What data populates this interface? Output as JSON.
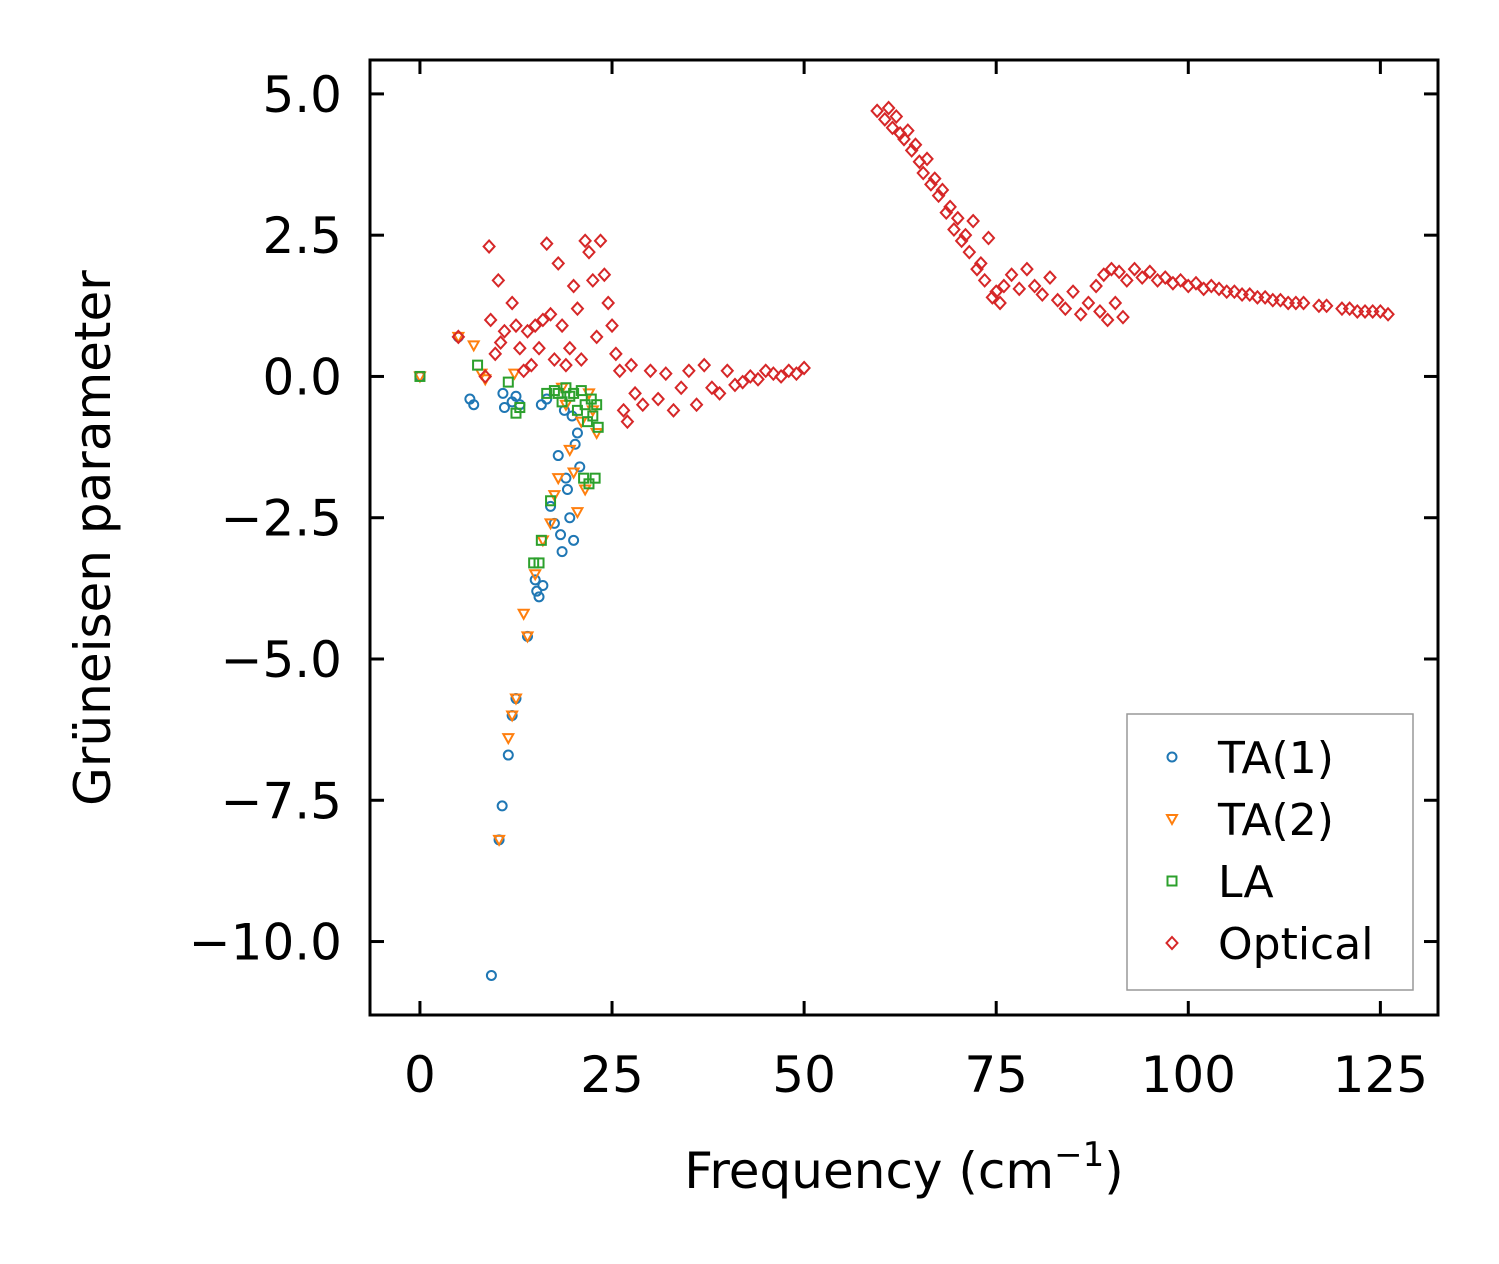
{
  "chart_data": {
    "type": "scatter",
    "xlabel": "Frequency (cm",
    "xlabel_sup": "−1",
    "xlabel_close": ")",
    "ylabel": "Grüneisen parameter",
    "xlim": [
      -6.5,
      132.5
    ],
    "ylim": [
      -11.3,
      5.6
    ],
    "xticks": [
      0,
      25,
      50,
      75,
      100,
      125
    ],
    "xtick_labels": [
      "0",
      "25",
      "50",
      "75",
      "100",
      "125"
    ],
    "yticks": [
      5.0,
      2.5,
      0.0,
      -2.5,
      -5.0,
      -7.5,
      -10.0
    ],
    "ytick_labels": [
      "5.0",
      "2.5",
      "0.0",
      "−2.5",
      "−5.0",
      "−7.5",
      "−10.0"
    ],
    "legend_position": "lower-right",
    "series": [
      {
        "name": "TA(1)",
        "marker": "circle",
        "color": "#1f77b4",
        "points": [
          [
            0,
            0
          ],
          [
            5,
            0.7
          ],
          [
            6.5,
            -0.4
          ],
          [
            7,
            -0.5
          ],
          [
            9.3,
            -10.6
          ],
          [
            10.8,
            -0.3
          ],
          [
            11,
            -0.55
          ],
          [
            12,
            -0.45
          ],
          [
            12.5,
            -0.35
          ],
          [
            13,
            -0.5
          ],
          [
            14,
            -4.6
          ],
          [
            15,
            -3.6
          ],
          [
            15.2,
            -3.8
          ],
          [
            15.5,
            -3.9
          ],
          [
            15.8,
            -0.5
          ],
          [
            16,
            -3.7
          ],
          [
            16.5,
            -0.4
          ],
          [
            17,
            -2.3
          ],
          [
            17.5,
            -2.6
          ],
          [
            18,
            -1.4
          ],
          [
            18.3,
            -2.8
          ],
          [
            18.5,
            -3.1
          ],
          [
            18.8,
            -0.6
          ],
          [
            19,
            -1.8
          ],
          [
            19.2,
            -2.0
          ],
          [
            19.5,
            -2.5
          ],
          [
            19.8,
            -0.7
          ],
          [
            20,
            -2.9
          ],
          [
            20.2,
            -1.2
          ],
          [
            20.5,
            -1.0
          ],
          [
            20.8,
            -1.6
          ],
          [
            10.3,
            -8.2
          ],
          [
            10.7,
            -7.6
          ],
          [
            11.5,
            -6.7
          ],
          [
            12.5,
            -5.7
          ],
          [
            12,
            -6.0
          ]
        ]
      },
      {
        "name": "TA(2)",
        "marker": "triangle-down",
        "color": "#ff7f0e",
        "points": [
          [
            0,
            0
          ],
          [
            5,
            0.7
          ],
          [
            7,
            0.55
          ],
          [
            8,
            0.05
          ],
          [
            8.5,
            -0.05
          ],
          [
            10.3,
            -8.2
          ],
          [
            11.5,
            -6.4
          ],
          [
            12,
            -6.0
          ],
          [
            12.3,
            0.05
          ],
          [
            12.5,
            -5.7
          ],
          [
            13.5,
            -4.2
          ],
          [
            14,
            -4.6
          ],
          [
            15,
            -3.5
          ],
          [
            16,
            -2.9
          ],
          [
            17,
            -2.6
          ],
          [
            17.5,
            -2.1
          ],
          [
            18,
            -1.8
          ],
          [
            18.5,
            -0.2
          ],
          [
            19,
            -0.5
          ],
          [
            19.5,
            -1.3
          ],
          [
            20,
            -1.7
          ],
          [
            20.5,
            -2.4
          ],
          [
            21,
            -0.8
          ],
          [
            21.5,
            -2.0
          ],
          [
            22,
            -0.3
          ],
          [
            22.5,
            -0.6
          ],
          [
            23,
            -1.0
          ]
        ]
      },
      {
        "name": "LA",
        "marker": "square",
        "color": "#2ca02c",
        "points": [
          [
            0,
            0
          ],
          [
            7.5,
            0.2
          ],
          [
            11.5,
            -0.1
          ],
          [
            12.5,
            -0.65
          ],
          [
            13,
            -0.55
          ],
          [
            14.8,
            -3.3
          ],
          [
            15.5,
            -3.3
          ],
          [
            15.8,
            -2.9
          ],
          [
            16.5,
            -0.3
          ],
          [
            17,
            -2.2
          ],
          [
            17.5,
            -0.25
          ],
          [
            18,
            -0.3
          ],
          [
            18.5,
            -0.45
          ],
          [
            19,
            -0.2
          ],
          [
            19.5,
            -0.35
          ],
          [
            20,
            -0.3
          ],
          [
            20.5,
            -0.6
          ],
          [
            21,
            -0.25
          ],
          [
            21.3,
            -1.8
          ],
          [
            21.5,
            -0.5
          ],
          [
            21.8,
            -0.8
          ],
          [
            22,
            -1.9
          ],
          [
            22.3,
            -0.4
          ],
          [
            22.5,
            -0.7
          ],
          [
            22.8,
            -1.8
          ],
          [
            23,
            -0.5
          ],
          [
            23.2,
            -0.9
          ]
        ]
      },
      {
        "name": "Optical",
        "marker": "diamond",
        "color": "#d62728",
        "points": [
          [
            5,
            0.7
          ],
          [
            8.5,
            0
          ],
          [
            9,
            2.3
          ],
          [
            9.2,
            1.0
          ],
          [
            9.8,
            0.4
          ],
          [
            10.2,
            1.7
          ],
          [
            10.5,
            0.6
          ],
          [
            11,
            0.8
          ],
          [
            12,
            1.3
          ],
          [
            12.5,
            0.9
          ],
          [
            13,
            0.5
          ],
          [
            13.5,
            0.1
          ],
          [
            14,
            0.8
          ],
          [
            14.5,
            0.2
          ],
          [
            15,
            0.9
          ],
          [
            15.5,
            0.5
          ],
          [
            16,
            1.0
          ],
          [
            16.5,
            2.35
          ],
          [
            17,
            1.1
          ],
          [
            17.5,
            0.3
          ],
          [
            18,
            2.0
          ],
          [
            18.5,
            0.9
          ],
          [
            19,
            0.2
          ],
          [
            19.5,
            0.5
          ],
          [
            20,
            1.6
          ],
          [
            20.5,
            1.2
          ],
          [
            21,
            0.3
          ],
          [
            21.5,
            2.4
          ],
          [
            22,
            2.2
          ],
          [
            22.5,
            1.7
          ],
          [
            23,
            0.7
          ],
          [
            23.5,
            2.4
          ],
          [
            24,
            1.8
          ],
          [
            24.5,
            1.3
          ],
          [
            25,
            0.9
          ],
          [
            25.5,
            0.4
          ],
          [
            26,
            0.1
          ],
          [
            26.5,
            -0.6
          ],
          [
            27,
            -0.8
          ],
          [
            27.5,
            0.2
          ],
          [
            28,
            -0.3
          ],
          [
            29,
            -0.5
          ],
          [
            30,
            0.1
          ],
          [
            31,
            -0.4
          ],
          [
            32,
            0.05
          ],
          [
            33,
            -0.6
          ],
          [
            34,
            -0.2
          ],
          [
            35,
            0.1
          ],
          [
            36,
            -0.5
          ],
          [
            37,
            0.2
          ],
          [
            38,
            -0.2
          ],
          [
            39,
            -0.3
          ],
          [
            40,
            0.1
          ],
          [
            41,
            -0.15
          ],
          [
            42,
            -0.1
          ],
          [
            43,
            0
          ],
          [
            44,
            -0.05
          ],
          [
            45,
            0.1
          ],
          [
            46,
            0.05
          ],
          [
            47,
            0
          ],
          [
            48,
            0.1
          ],
          [
            49,
            0.05
          ],
          [
            50,
            0.15
          ],
          [
            59.5,
            4.7
          ],
          [
            60.5,
            4.55
          ],
          [
            61,
            4.75
          ],
          [
            61.5,
            4.4
          ],
          [
            62,
            4.6
          ],
          [
            62.5,
            4.3
          ],
          [
            63,
            4.2
          ],
          [
            63.5,
            4.35
          ],
          [
            64,
            4.0
          ],
          [
            64.5,
            4.1
          ],
          [
            65,
            3.8
          ],
          [
            65.5,
            3.6
          ],
          [
            66,
            3.85
          ],
          [
            66.5,
            3.4
          ],
          [
            67,
            3.5
          ],
          [
            67.5,
            3.2
          ],
          [
            68,
            3.3
          ],
          [
            68.5,
            2.9
          ],
          [
            69,
            3.0
          ],
          [
            69.5,
            2.6
          ],
          [
            70,
            2.8
          ],
          [
            70.5,
            2.4
          ],
          [
            71,
            2.5
          ],
          [
            71.5,
            2.2
          ],
          [
            72,
            2.75
          ],
          [
            72.5,
            1.9
          ],
          [
            73,
            2.0
          ],
          [
            73.5,
            1.7
          ],
          [
            74,
            2.45
          ],
          [
            74.5,
            1.4
          ],
          [
            75,
            1.5
          ],
          [
            75.5,
            1.3
          ],
          [
            76,
            1.6
          ],
          [
            77,
            1.8
          ],
          [
            78,
            1.55
          ],
          [
            79,
            1.9
          ],
          [
            80,
            1.6
          ],
          [
            81,
            1.45
          ],
          [
            82,
            1.75
          ],
          [
            83,
            1.35
          ],
          [
            84,
            1.2
          ],
          [
            85,
            1.5
          ],
          [
            86,
            1.1
          ],
          [
            87,
            1.3
          ],
          [
            88,
            1.6
          ],
          [
            88.5,
            1.15
          ],
          [
            89,
            1.8
          ],
          [
            89.5,
            1.0
          ],
          [
            90,
            1.9
          ],
          [
            90.5,
            1.3
          ],
          [
            91,
            1.85
          ],
          [
            91.5,
            1.05
          ],
          [
            92,
            1.7
          ],
          [
            93,
            1.9
          ],
          [
            94,
            1.75
          ],
          [
            95,
            1.85
          ],
          [
            96,
            1.7
          ],
          [
            97,
            1.75
          ],
          [
            98,
            1.65
          ],
          [
            99,
            1.7
          ],
          [
            100,
            1.6
          ],
          [
            101,
            1.65
          ],
          [
            102,
            1.55
          ],
          [
            103,
            1.6
          ],
          [
            104,
            1.55
          ],
          [
            105,
            1.5
          ],
          [
            106,
            1.5
          ],
          [
            107,
            1.45
          ],
          [
            108,
            1.45
          ],
          [
            109,
            1.4
          ],
          [
            110,
            1.4
          ],
          [
            111,
            1.35
          ],
          [
            112,
            1.35
          ],
          [
            113,
            1.3
          ],
          [
            114,
            1.3
          ],
          [
            115,
            1.3
          ],
          [
            117,
            1.25
          ],
          [
            118,
            1.25
          ],
          [
            120,
            1.2
          ],
          [
            121,
            1.2
          ],
          [
            122,
            1.15
          ],
          [
            123,
            1.15
          ],
          [
            124,
            1.15
          ],
          [
            125,
            1.15
          ],
          [
            126,
            1.1
          ]
        ]
      }
    ]
  }
}
